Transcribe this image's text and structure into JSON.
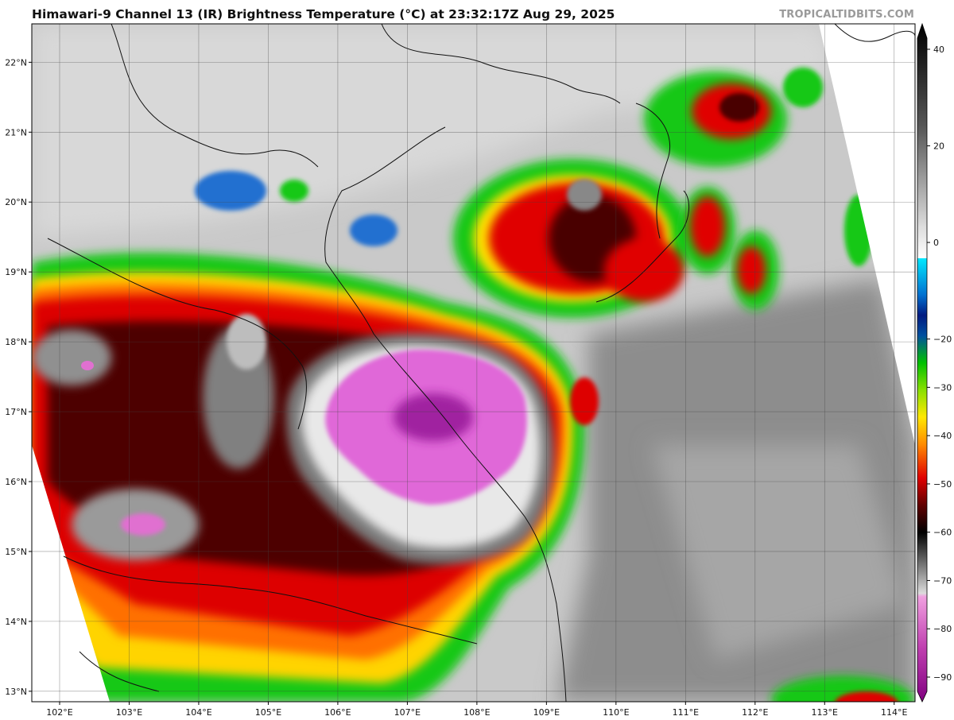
{
  "title": "Himawari-9 Channel 13 (IR) Brightness Temperature (°C) at 23:32:17Z Aug 29, 2025",
  "credit": "TROPICALTIDBITS.COM",
  "map": {
    "lon_range": [
      101.6,
      114.3
    ],
    "lat_range": [
      12.85,
      22.55
    ],
    "lon_labels": [
      "102°E",
      "103°E",
      "104°E",
      "105°E",
      "106°E",
      "107°E",
      "108°E",
      "109°E",
      "110°E",
      "111°E",
      "112°E",
      "113°E",
      "114°E"
    ],
    "lon_values": [
      102,
      103,
      104,
      105,
      106,
      107,
      108,
      109,
      110,
      111,
      112,
      113,
      114
    ],
    "lat_labels": [
      "13°N",
      "14°N",
      "15°N",
      "16°N",
      "17°N",
      "18°N",
      "19°N",
      "20°N",
      "21°N",
      "22°N"
    ],
    "lat_values": [
      13,
      14,
      15,
      16,
      17,
      18,
      19,
      20,
      21,
      22
    ],
    "storm_center": {
      "lon": 107.3,
      "lat": 16.9
    }
  },
  "colorbar": {
    "min": -90,
    "max": 40,
    "labels": [
      "40",
      "20",
      "0",
      "−20",
      "−30",
      "−40",
      "−50",
      "−60",
      "−70",
      "−80",
      "−90"
    ],
    "values": [
      40,
      20,
      0,
      -20,
      -30,
      -40,
      -50,
      -60,
      -70,
      -80,
      -90
    ],
    "colors": {
      "warm": "#1a1a1a",
      "cold_gray": "#ffffff",
      "cyan": "#00e5ff",
      "blue": "#0030a0",
      "green": "#16c816",
      "yellow": "#ffe800",
      "orange": "#ff7a00",
      "red": "#e00000",
      "darkred": "#5a0000",
      "black": "#050505",
      "magenta": "#e060d0",
      "purple": "#8a008a"
    }
  }
}
